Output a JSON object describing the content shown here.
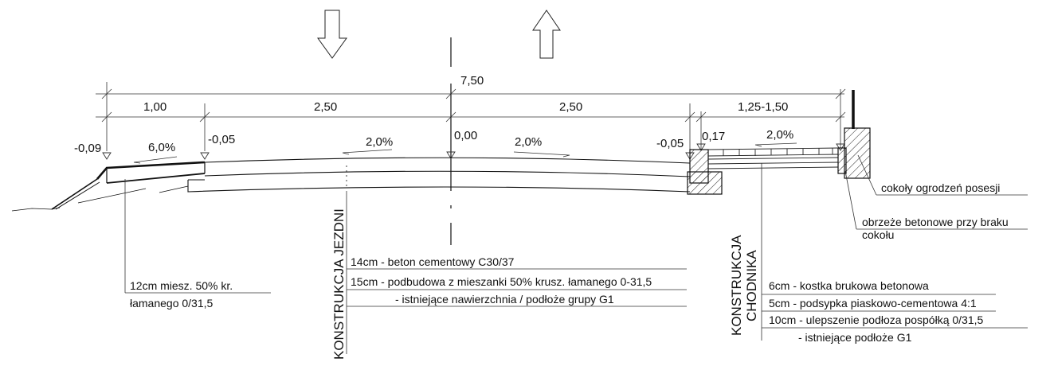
{
  "dimensions": {
    "total": "7,50",
    "left_shoulder": "1,00",
    "lane_left": "2,50",
    "lane_right": "2,50",
    "sidewalk": "1,25-1,50"
  },
  "levels": {
    "outer_left": "-0,09",
    "edge_left": "-0,05",
    "center": "0,00",
    "edge_right": "-0,05",
    "sidewalk": "0,17"
  },
  "slopes": {
    "shoulder": "6,0%",
    "lane_left": "2,0%",
    "lane_right": "2,0%",
    "sidewalk": "2,0%"
  },
  "shoulder_note": {
    "line1": "12cm  miesz. 50% kr.",
    "line2": "łamanego 0/31,5"
  },
  "roadway": {
    "title": "KONSTRUKCJA JEZDNI",
    "layers": [
      "14cm -  beton cementowy C30/37",
      "15cm -  podbudowa z mieszanki 50% krusz. łamanego 0-31,5",
      "- istniejące nawierzchnia / podłoże grupy G1"
    ]
  },
  "sidewalk_construction": {
    "title_line1": "KONSTRUKCJA",
    "title_line2": "CHODNIKA",
    "layers": [
      "6cm -  kostka brukowa betonowa",
      "5cm -  podsypka piaskowo-cementowa 4:1",
      "10cm -  ulepszenie podłoza pospółką 0/31,5",
      "- istniejące podłoże G1"
    ]
  },
  "fence_notes": {
    "plinth": "cokoły ogrodzeń posesji",
    "curb_line1": "obrzeże betonowe przy braku",
    "curb_line2": "cokołu"
  }
}
